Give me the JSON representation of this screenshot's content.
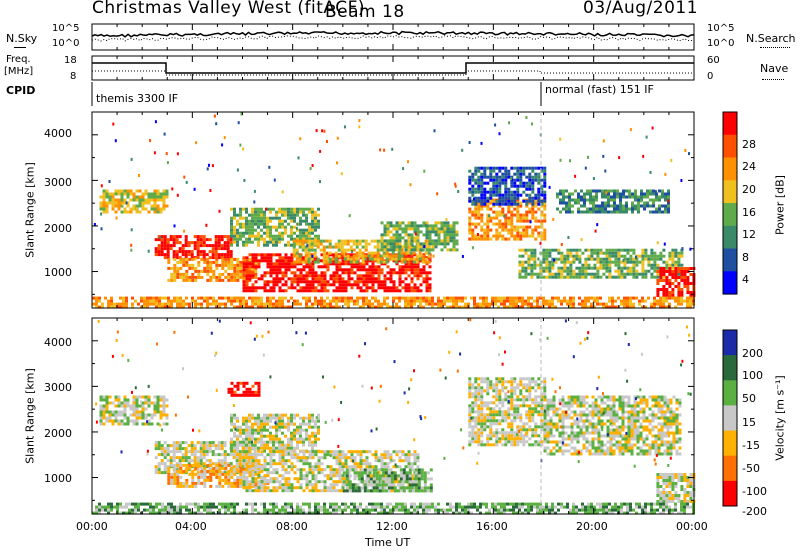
{
  "header": {
    "title": "Christmas Valley West (fitACF)",
    "beam": "Beam 18",
    "date": "03/Aug/2011"
  },
  "strips": {
    "nsky_label": "N.Sky",
    "nsearch_label": "N.Search",
    "noise_ticks": [
      "10^5",
      "10^0"
    ],
    "freq_label_1": "Freq.",
    "freq_label_2": "[MHz]",
    "freq_ticks": [
      "18",
      "8"
    ],
    "nave_label": "Nave",
    "nave_ticks": [
      "60",
      "0"
    ],
    "cpid_label": "CPID",
    "cpid_segments": [
      "themis 3300 IF",
      "normal (fast) 151 IF"
    ]
  },
  "colors": {
    "power": [
      "#0000ff",
      "#1f4fa0",
      "#3a8a6a",
      "#5faa4a",
      "#f0c020",
      "#ff9000",
      "#ff5000",
      "#ff0000"
    ],
    "velocity": [
      "#1a2aa8",
      "#2a6a3a",
      "#5ab040",
      "#c8c8c8",
      "#ffb000",
      "#ff7000",
      "#ff0000"
    ]
  },
  "chart_data": [
    {
      "type": "heatmap",
      "name": "power",
      "ylabel": "Slant Range [km]",
      "yticks": [
        "4000",
        "3000",
        "2000",
        "1000"
      ],
      "ylim": [
        200,
        4500
      ],
      "xlim": [
        0,
        24
      ],
      "colorbar_label": "Power [dB]",
      "colorbar_ticks": [
        "28",
        "24",
        "20",
        "16",
        "12",
        "8",
        "4"
      ],
      "regions": [
        {
          "t": [
            0.3,
            3.0
          ],
          "r": [
            2300,
            2800
          ],
          "level": 4
        },
        {
          "t": [
            2.5,
            5.5
          ],
          "r": [
            1300,
            1800
          ],
          "level": 7
        },
        {
          "t": [
            3.0,
            6.5
          ],
          "r": [
            800,
            1300
          ],
          "level": 5
        },
        {
          "t": [
            5.5,
            9.0
          ],
          "r": [
            1600,
            2400
          ],
          "level": 3
        },
        {
          "t": [
            6.0,
            13.5
          ],
          "r": [
            600,
            1400
          ],
          "level": 7
        },
        {
          "t": [
            8.0,
            13.5
          ],
          "r": [
            1200,
            1700
          ],
          "level": 4
        },
        {
          "t": [
            11.5,
            14.5
          ],
          "r": [
            1500,
            2100
          ],
          "level": 3
        },
        {
          "t": [
            15.0,
            18.0
          ],
          "r": [
            1700,
            2600
          ],
          "level": 5
        },
        {
          "t": [
            15.0,
            18.0
          ],
          "r": [
            2500,
            3300
          ],
          "level": 1
        },
        {
          "t": [
            17.0,
            23.5
          ],
          "r": [
            900,
            1500
          ],
          "level": 3
        },
        {
          "t": [
            18.5,
            23.0
          ],
          "r": [
            2300,
            2800
          ],
          "level": 2
        },
        {
          "t": [
            22.5,
            24.0
          ],
          "r": [
            500,
            1100
          ],
          "level": 7
        },
        {
          "t": [
            0.0,
            24.0
          ],
          "r": [
            200,
            450
          ],
          "level": 5
        }
      ]
    },
    {
      "type": "heatmap",
      "name": "velocity",
      "ylabel": "Slant Range [km]",
      "yticks": [
        "4000",
        "3000",
        "2000",
        "1000"
      ],
      "ylim": [
        200,
        4500
      ],
      "xlim": [
        0,
        24
      ],
      "xlabel": "Time UT",
      "xticks": [
        "00:00",
        "04:00",
        "08:00",
        "12:00",
        "16:00",
        "20:00",
        "00:00"
      ],
      "colorbar_label": "Velocity [m s⁻¹]",
      "colorbar_ticks": [
        "200",
        "100",
        "50",
        "15",
        "-15",
        "-50",
        "-100",
        "-200"
      ],
      "regions": [
        {
          "t": [
            0.3,
            3.0
          ],
          "r": [
            2200,
            2800
          ],
          "level": 3
        },
        {
          "t": [
            2.5,
            6.5
          ],
          "r": [
            1100,
            1800
          ],
          "level": 3
        },
        {
          "t": [
            3.0,
            7.0
          ],
          "r": [
            800,
            1300
          ],
          "level": 4
        },
        {
          "t": [
            5.5,
            9.0
          ],
          "r": [
            1600,
            2400
          ],
          "level": 3
        },
        {
          "t": [
            6.0,
            13.0
          ],
          "r": [
            700,
            1600
          ],
          "level": 3
        },
        {
          "t": [
            10.0,
            13.5
          ],
          "r": [
            700,
            1200
          ],
          "level": 2
        },
        {
          "t": [
            15.0,
            18.0
          ],
          "r": [
            1700,
            3200
          ],
          "level": 3
        },
        {
          "t": [
            18.0,
            23.5
          ],
          "r": [
            1500,
            2800
          ],
          "level": 3
        },
        {
          "t": [
            22.5,
            24.0
          ],
          "r": [
            500,
            1100
          ],
          "level": 3
        },
        {
          "t": [
            5.4,
            6.6
          ],
          "r": [
            2800,
            3100
          ],
          "level": 6
        },
        {
          "t": [
            0.0,
            24.0
          ],
          "r": [
            200,
            450
          ],
          "level": 2
        }
      ]
    }
  ]
}
